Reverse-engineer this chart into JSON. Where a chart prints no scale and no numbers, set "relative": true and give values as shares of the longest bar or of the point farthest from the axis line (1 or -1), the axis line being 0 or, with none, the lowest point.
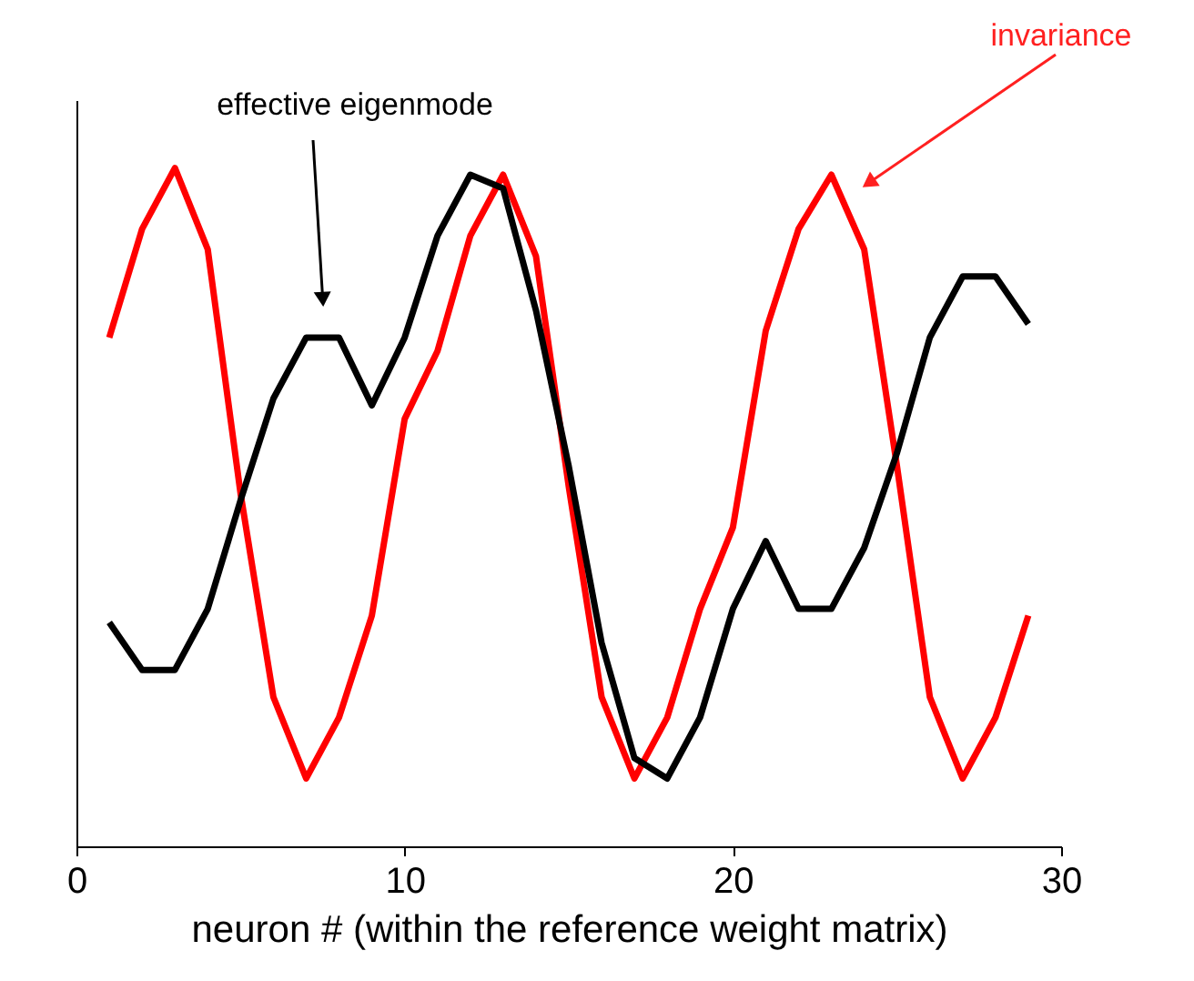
{
  "chart_data": {
    "type": "line",
    "relative": true,
    "xlabel": "neuron # (within the reference weight matrix)",
    "x": [
      1,
      2,
      3,
      4,
      5,
      6,
      7,
      8,
      9,
      10,
      11,
      12,
      13,
      14,
      15,
      16,
      17,
      18,
      19,
      20,
      21,
      22,
      23,
      24,
      25,
      26,
      27,
      28,
      29
    ],
    "xlim": [
      0,
      30
    ],
    "xticks": [
      0,
      10,
      20,
      30
    ],
    "grid": false,
    "marker": "none",
    "line_style": "solid",
    "series": [
      {
        "color": "#ff0000",
        "values": [
          0.75,
          0.91,
          1.0,
          0.88,
          0.52,
          0.22,
          0.1,
          0.19,
          0.34,
          0.63,
          0.73,
          0.9,
          0.99,
          0.87,
          0.53,
          0.22,
          0.1,
          0.19,
          0.35,
          0.47,
          0.76,
          0.91,
          0.99,
          0.88,
          0.56,
          0.22,
          0.1,
          0.19,
          0.34
        ]
      },
      {
        "color": "#000000",
        "values": [
          0.33,
          0.26,
          0.26,
          0.35,
          0.51,
          0.66,
          0.75,
          0.75,
          0.65,
          0.75,
          0.9,
          0.99,
          0.97,
          0.79,
          0.56,
          0.3,
          0.13,
          0.1,
          0.19,
          0.35,
          0.45,
          0.35,
          0.35,
          0.44,
          0.58,
          0.75,
          0.84,
          0.84,
          0.77
        ]
      }
    ],
    "annotations": [
      {
        "text": "effective eigenmode",
        "x": 7.5,
        "y": 0.81
      },
      {
        "text": "invariance",
        "x": 24.2,
        "y": 0.98
      }
    ]
  }
}
